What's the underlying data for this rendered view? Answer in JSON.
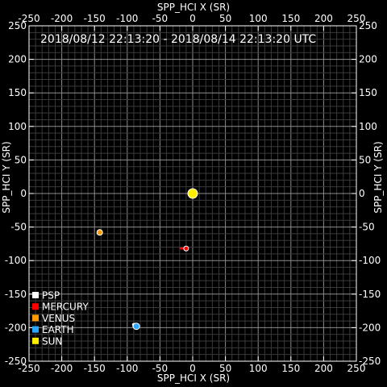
{
  "chart_data": {
    "type": "scatter",
    "title": "2018/08/12 22:13:20 - 2018/08/14 22:13:20 UTC",
    "xlabel": "SPP_HCI X (SR)",
    "ylabel": "SPP_HCI Y (SR)",
    "xlim": [
      -250,
      250
    ],
    "ylim": [
      -250,
      250
    ],
    "major_ticks": [
      -250,
      -200,
      -150,
      -100,
      -50,
      0,
      50,
      100,
      150,
      200,
      250
    ],
    "minor_step": 10,
    "grid": true,
    "legend_position": "bottom-left",
    "series": [
      {
        "name": "PSP",
        "color": "#ffffff",
        "trail": [
          [
            -92,
            -194
          ],
          [
            -88,
            -197
          ]
        ],
        "x": -88,
        "y": -197
      },
      {
        "name": "MERCURY",
        "color": "#ff0000",
        "trail": [
          [
            -20,
            -82
          ],
          [
            -10,
            -82
          ]
        ],
        "x": -10,
        "y": -82
      },
      {
        "name": "VENUS",
        "color": "#ff9900",
        "trail": [
          [
            -144,
            -55
          ],
          [
            -142,
            -58
          ]
        ],
        "x": -142,
        "y": -58
      },
      {
        "name": "EARTH",
        "color": "#2aa6ff",
        "trail": [
          [
            -87,
            -195
          ],
          [
            -86,
            -198
          ]
        ],
        "x": -86,
        "y": -198
      },
      {
        "name": "SUN",
        "color": "#ffee00",
        "trail": [],
        "x": 0,
        "y": 0
      }
    ]
  }
}
